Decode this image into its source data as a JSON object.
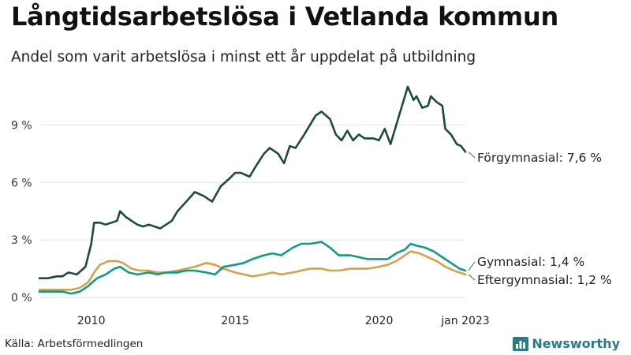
{
  "title": "Långtidsarbetslösa i Vetlanda kommun",
  "subtitle": "Andel som varit arbetslösa i minst ett år uppdelat på utbildning",
  "source": "Källa: Arbetsförmedlingen",
  "brand": "Newsworthy",
  "colors": {
    "forgymnasial": "#1d4a40",
    "gymnasial": "#139a86",
    "eftergymnasial": "#d4a24e",
    "grid": "#e2e2e2",
    "brand": "#2a7a8a"
  },
  "chart_data": {
    "type": "line",
    "title": "Långtidsarbetslösa i Vetlanda kommun",
    "xlabel": "",
    "ylabel": "",
    "x_range": [
      2008.2,
      2023.0
    ],
    "ylim": [
      0,
      11.2
    ],
    "y_ticks": [
      0,
      3,
      6,
      9
    ],
    "y_tick_labels": [
      "0 %",
      "3 %",
      "6 %",
      "9 %"
    ],
    "x_ticks": [
      2010,
      2015,
      2020,
      2023.0
    ],
    "x_tick_labels": [
      "2010",
      "2015",
      "2020",
      "jan 2023"
    ],
    "grid": true,
    "series": [
      {
        "name": "Förgymnasial",
        "end_label": "Förgymnasial: 7,6 %",
        "color_key": "forgymnasial",
        "points": [
          [
            2008.2,
            1.0
          ],
          [
            2008.5,
            1.0
          ],
          [
            2008.8,
            1.1
          ],
          [
            2009.0,
            1.1
          ],
          [
            2009.2,
            1.3
          ],
          [
            2009.5,
            1.2
          ],
          [
            2009.8,
            1.6
          ],
          [
            2010.0,
            2.8
          ],
          [
            2010.1,
            3.9
          ],
          [
            2010.3,
            3.9
          ],
          [
            2010.5,
            3.8
          ],
          [
            2010.7,
            3.9
          ],
          [
            2010.9,
            4.0
          ],
          [
            2011.0,
            4.5
          ],
          [
            2011.2,
            4.2
          ],
          [
            2011.4,
            4.0
          ],
          [
            2011.6,
            3.8
          ],
          [
            2011.8,
            3.7
          ],
          [
            2012.0,
            3.8
          ],
          [
            2012.2,
            3.7
          ],
          [
            2012.4,
            3.6
          ],
          [
            2012.6,
            3.8
          ],
          [
            2012.8,
            4.0
          ],
          [
            2013.0,
            4.5
          ],
          [
            2013.3,
            5.0
          ],
          [
            2013.6,
            5.5
          ],
          [
            2013.9,
            5.3
          ],
          [
            2014.2,
            5.0
          ],
          [
            2014.5,
            5.8
          ],
          [
            2014.8,
            6.2
          ],
          [
            2015.0,
            6.5
          ],
          [
            2015.2,
            6.5
          ],
          [
            2015.5,
            6.3
          ],
          [
            2015.7,
            6.8
          ],
          [
            2016.0,
            7.5
          ],
          [
            2016.2,
            7.8
          ],
          [
            2016.5,
            7.5
          ],
          [
            2016.7,
            7.0
          ],
          [
            2016.9,
            7.9
          ],
          [
            2017.1,
            7.8
          ],
          [
            2017.4,
            8.5
          ],
          [
            2017.6,
            9.0
          ],
          [
            2017.8,
            9.5
          ],
          [
            2018.0,
            9.7
          ],
          [
            2018.3,
            9.3
          ],
          [
            2018.5,
            8.5
          ],
          [
            2018.7,
            8.2
          ],
          [
            2018.9,
            8.7
          ],
          [
            2019.1,
            8.2
          ],
          [
            2019.3,
            8.5
          ],
          [
            2019.5,
            8.3
          ],
          [
            2019.8,
            8.3
          ],
          [
            2020.0,
            8.2
          ],
          [
            2020.2,
            8.8
          ],
          [
            2020.4,
            8.0
          ],
          [
            2020.6,
            9.0
          ],
          [
            2020.8,
            10.0
          ],
          [
            2021.0,
            11.0
          ],
          [
            2021.2,
            10.3
          ],
          [
            2021.3,
            10.5
          ],
          [
            2021.5,
            9.9
          ],
          [
            2021.7,
            10.0
          ],
          [
            2021.8,
            10.5
          ],
          [
            2022.0,
            10.2
          ],
          [
            2022.2,
            10.0
          ],
          [
            2022.3,
            8.8
          ],
          [
            2022.5,
            8.5
          ],
          [
            2022.7,
            8.0
          ],
          [
            2022.85,
            7.9
          ],
          [
            2023.0,
            7.6
          ]
        ]
      },
      {
        "name": "Gymnasial",
        "end_label": "Gymnasial: 1,4 %",
        "color_key": "gymnasial",
        "points": [
          [
            2008.2,
            0.3
          ],
          [
            2008.5,
            0.3
          ],
          [
            2008.8,
            0.3
          ],
          [
            2009.0,
            0.3
          ],
          [
            2009.3,
            0.2
          ],
          [
            2009.6,
            0.3
          ],
          [
            2009.9,
            0.6
          ],
          [
            2010.2,
            1.0
          ],
          [
            2010.5,
            1.2
          ],
          [
            2010.8,
            1.5
          ],
          [
            2011.0,
            1.6
          ],
          [
            2011.3,
            1.3
          ],
          [
            2011.6,
            1.2
          ],
          [
            2012.0,
            1.3
          ],
          [
            2012.3,
            1.2
          ],
          [
            2012.6,
            1.3
          ],
          [
            2013.0,
            1.3
          ],
          [
            2013.3,
            1.4
          ],
          [
            2013.6,
            1.4
          ],
          [
            2014.0,
            1.3
          ],
          [
            2014.3,
            1.2
          ],
          [
            2014.6,
            1.6
          ],
          [
            2015.0,
            1.7
          ],
          [
            2015.3,
            1.8
          ],
          [
            2015.6,
            2.0
          ],
          [
            2016.0,
            2.2
          ],
          [
            2016.3,
            2.3
          ],
          [
            2016.6,
            2.2
          ],
          [
            2017.0,
            2.6
          ],
          [
            2017.3,
            2.8
          ],
          [
            2017.6,
            2.8
          ],
          [
            2018.0,
            2.9
          ],
          [
            2018.3,
            2.6
          ],
          [
            2018.6,
            2.2
          ],
          [
            2019.0,
            2.2
          ],
          [
            2019.3,
            2.1
          ],
          [
            2019.6,
            2.0
          ],
          [
            2020.0,
            2.0
          ],
          [
            2020.3,
            2.0
          ],
          [
            2020.6,
            2.3
          ],
          [
            2020.9,
            2.5
          ],
          [
            2021.1,
            2.8
          ],
          [
            2021.3,
            2.7
          ],
          [
            2021.6,
            2.6
          ],
          [
            2021.9,
            2.4
          ],
          [
            2022.2,
            2.1
          ],
          [
            2022.5,
            1.8
          ],
          [
            2022.8,
            1.5
          ],
          [
            2023.0,
            1.4
          ]
        ]
      },
      {
        "name": "Eftergymnasial",
        "end_label": "Eftergymnasial: 1,2 %",
        "color_key": "eftergymnasial",
        "points": [
          [
            2008.2,
            0.4
          ],
          [
            2008.5,
            0.4
          ],
          [
            2008.8,
            0.4
          ],
          [
            2009.0,
            0.4
          ],
          [
            2009.3,
            0.4
          ],
          [
            2009.6,
            0.5
          ],
          [
            2009.9,
            0.8
          ],
          [
            2010.1,
            1.3
          ],
          [
            2010.3,
            1.7
          ],
          [
            2010.6,
            1.9
          ],
          [
            2010.9,
            1.9
          ],
          [
            2011.1,
            1.8
          ],
          [
            2011.4,
            1.5
          ],
          [
            2011.7,
            1.4
          ],
          [
            2012.0,
            1.4
          ],
          [
            2012.3,
            1.3
          ],
          [
            2012.6,
            1.3
          ],
          [
            2013.0,
            1.4
          ],
          [
            2013.3,
            1.5
          ],
          [
            2013.6,
            1.6
          ],
          [
            2014.0,
            1.8
          ],
          [
            2014.3,
            1.7
          ],
          [
            2014.6,
            1.5
          ],
          [
            2015.0,
            1.3
          ],
          [
            2015.3,
            1.2
          ],
          [
            2015.6,
            1.1
          ],
          [
            2016.0,
            1.2
          ],
          [
            2016.3,
            1.3
          ],
          [
            2016.6,
            1.2
          ],
          [
            2017.0,
            1.3
          ],
          [
            2017.3,
            1.4
          ],
          [
            2017.6,
            1.5
          ],
          [
            2018.0,
            1.5
          ],
          [
            2018.3,
            1.4
          ],
          [
            2018.6,
            1.4
          ],
          [
            2019.0,
            1.5
          ],
          [
            2019.3,
            1.5
          ],
          [
            2019.6,
            1.5
          ],
          [
            2020.0,
            1.6
          ],
          [
            2020.3,
            1.7
          ],
          [
            2020.6,
            1.9
          ],
          [
            2020.9,
            2.2
          ],
          [
            2021.1,
            2.4
          ],
          [
            2021.4,
            2.3
          ],
          [
            2021.7,
            2.1
          ],
          [
            2022.0,
            1.9
          ],
          [
            2022.3,
            1.6
          ],
          [
            2022.6,
            1.4
          ],
          [
            2023.0,
            1.2
          ]
        ]
      }
    ]
  }
}
